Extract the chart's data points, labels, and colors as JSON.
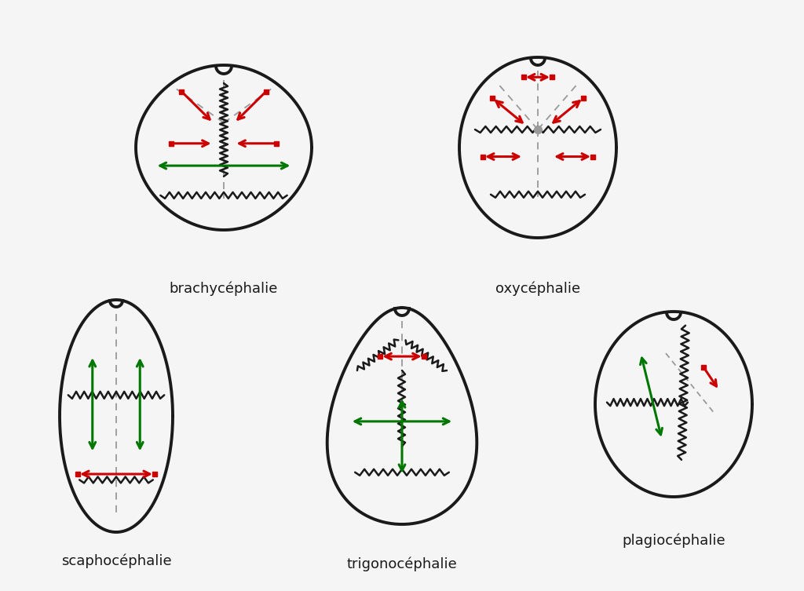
{
  "background_color": "#f5f5f5",
  "labels": [
    "brachycéphalie",
    "oxycéphalie",
    "scaphocéphalie",
    "trigonocéphalie",
    "plagiocéphalie"
  ],
  "label_fontsize": 13,
  "red": "#cc0000",
  "green": "#007700",
  "gray": "#999999",
  "black": "#1a1a1a",
  "lw_skull": 2.8,
  "lw_suture": 1.8,
  "lw_arrow": 2.2
}
